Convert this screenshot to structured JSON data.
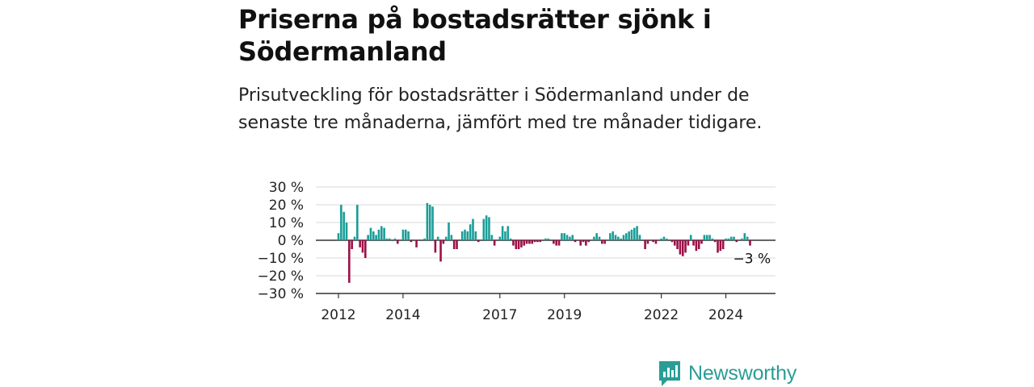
{
  "title": "Priserna på bostadsrätter sjönk i Södermanland",
  "subtitle": "Prisutveckling för bostadsrätter i Södermanland under de senaste tre månaderna, jämfört med tre månader tidigare.",
  "brand": {
    "name": "Newsworthy",
    "icon": "bar-chart-speech-bubble-icon"
  },
  "colors": {
    "positive": "#1a9e98",
    "negative": "#9b1147",
    "grid": "#d9d9d9",
    "axis": "#333333",
    "brand": "#2a9d95"
  },
  "chart_data": {
    "type": "bar",
    "ylim": [
      -30,
      30
    ],
    "y_ticks": [
      30,
      20,
      10,
      0,
      -10,
      -20,
      -30
    ],
    "y_tick_labels": [
      "30 %",
      "20 %",
      "10 %",
      "0 %",
      "−10 %",
      "−20 %",
      "−30 %"
    ],
    "x_ticks": [
      2012,
      2014,
      2017,
      2019,
      2022,
      2024
    ],
    "x_tick_labels": [
      "2012",
      "2014",
      "2017",
      "2019",
      "2022",
      "2024"
    ],
    "x_start": "2012-01",
    "last_value_label": "−3 %",
    "values": [
      4,
      20,
      16,
      10,
      -24,
      -5,
      2,
      20,
      -4,
      -7,
      -10,
      3,
      7,
      5,
      3,
      6,
      8,
      7,
      1,
      1,
      0,
      1,
      -2,
      0,
      6,
      6,
      5,
      -1,
      0,
      -4,
      0,
      0,
      1,
      21,
      20,
      19,
      -7,
      2,
      -12,
      -2,
      2,
      10,
      3,
      -5,
      -5,
      0,
      5,
      6,
      5,
      9,
      12,
      5,
      -1,
      0,
      12,
      14,
      13,
      3,
      -3,
      0,
      2,
      8,
      5,
      8,
      1,
      -3,
      -5,
      -5,
      -4,
      -3,
      -2,
      -2,
      -2,
      -1,
      -1,
      -1,
      0,
      1,
      1,
      0,
      -2,
      -3,
      -3,
      4,
      4,
      3,
      2,
      3,
      -1,
      0,
      -3,
      -1,
      -3,
      -1,
      0,
      2,
      4,
      2,
      -2,
      -2,
      0,
      4,
      5,
      3,
      2,
      1,
      3,
      4,
      5,
      6,
      7,
      8,
      3,
      0,
      -5,
      -2,
      0,
      -1,
      -2,
      0,
      1,
      2,
      1,
      0,
      -1,
      -3,
      -5,
      -8,
      -9,
      -7,
      -3,
      3,
      -3,
      -6,
      -5,
      -2,
      3,
      3,
      3,
      1,
      -1,
      -7,
      -6,
      -5,
      1,
      1,
      2,
      2,
      -1,
      0,
      1,
      4,
      2,
      -3
    ]
  }
}
